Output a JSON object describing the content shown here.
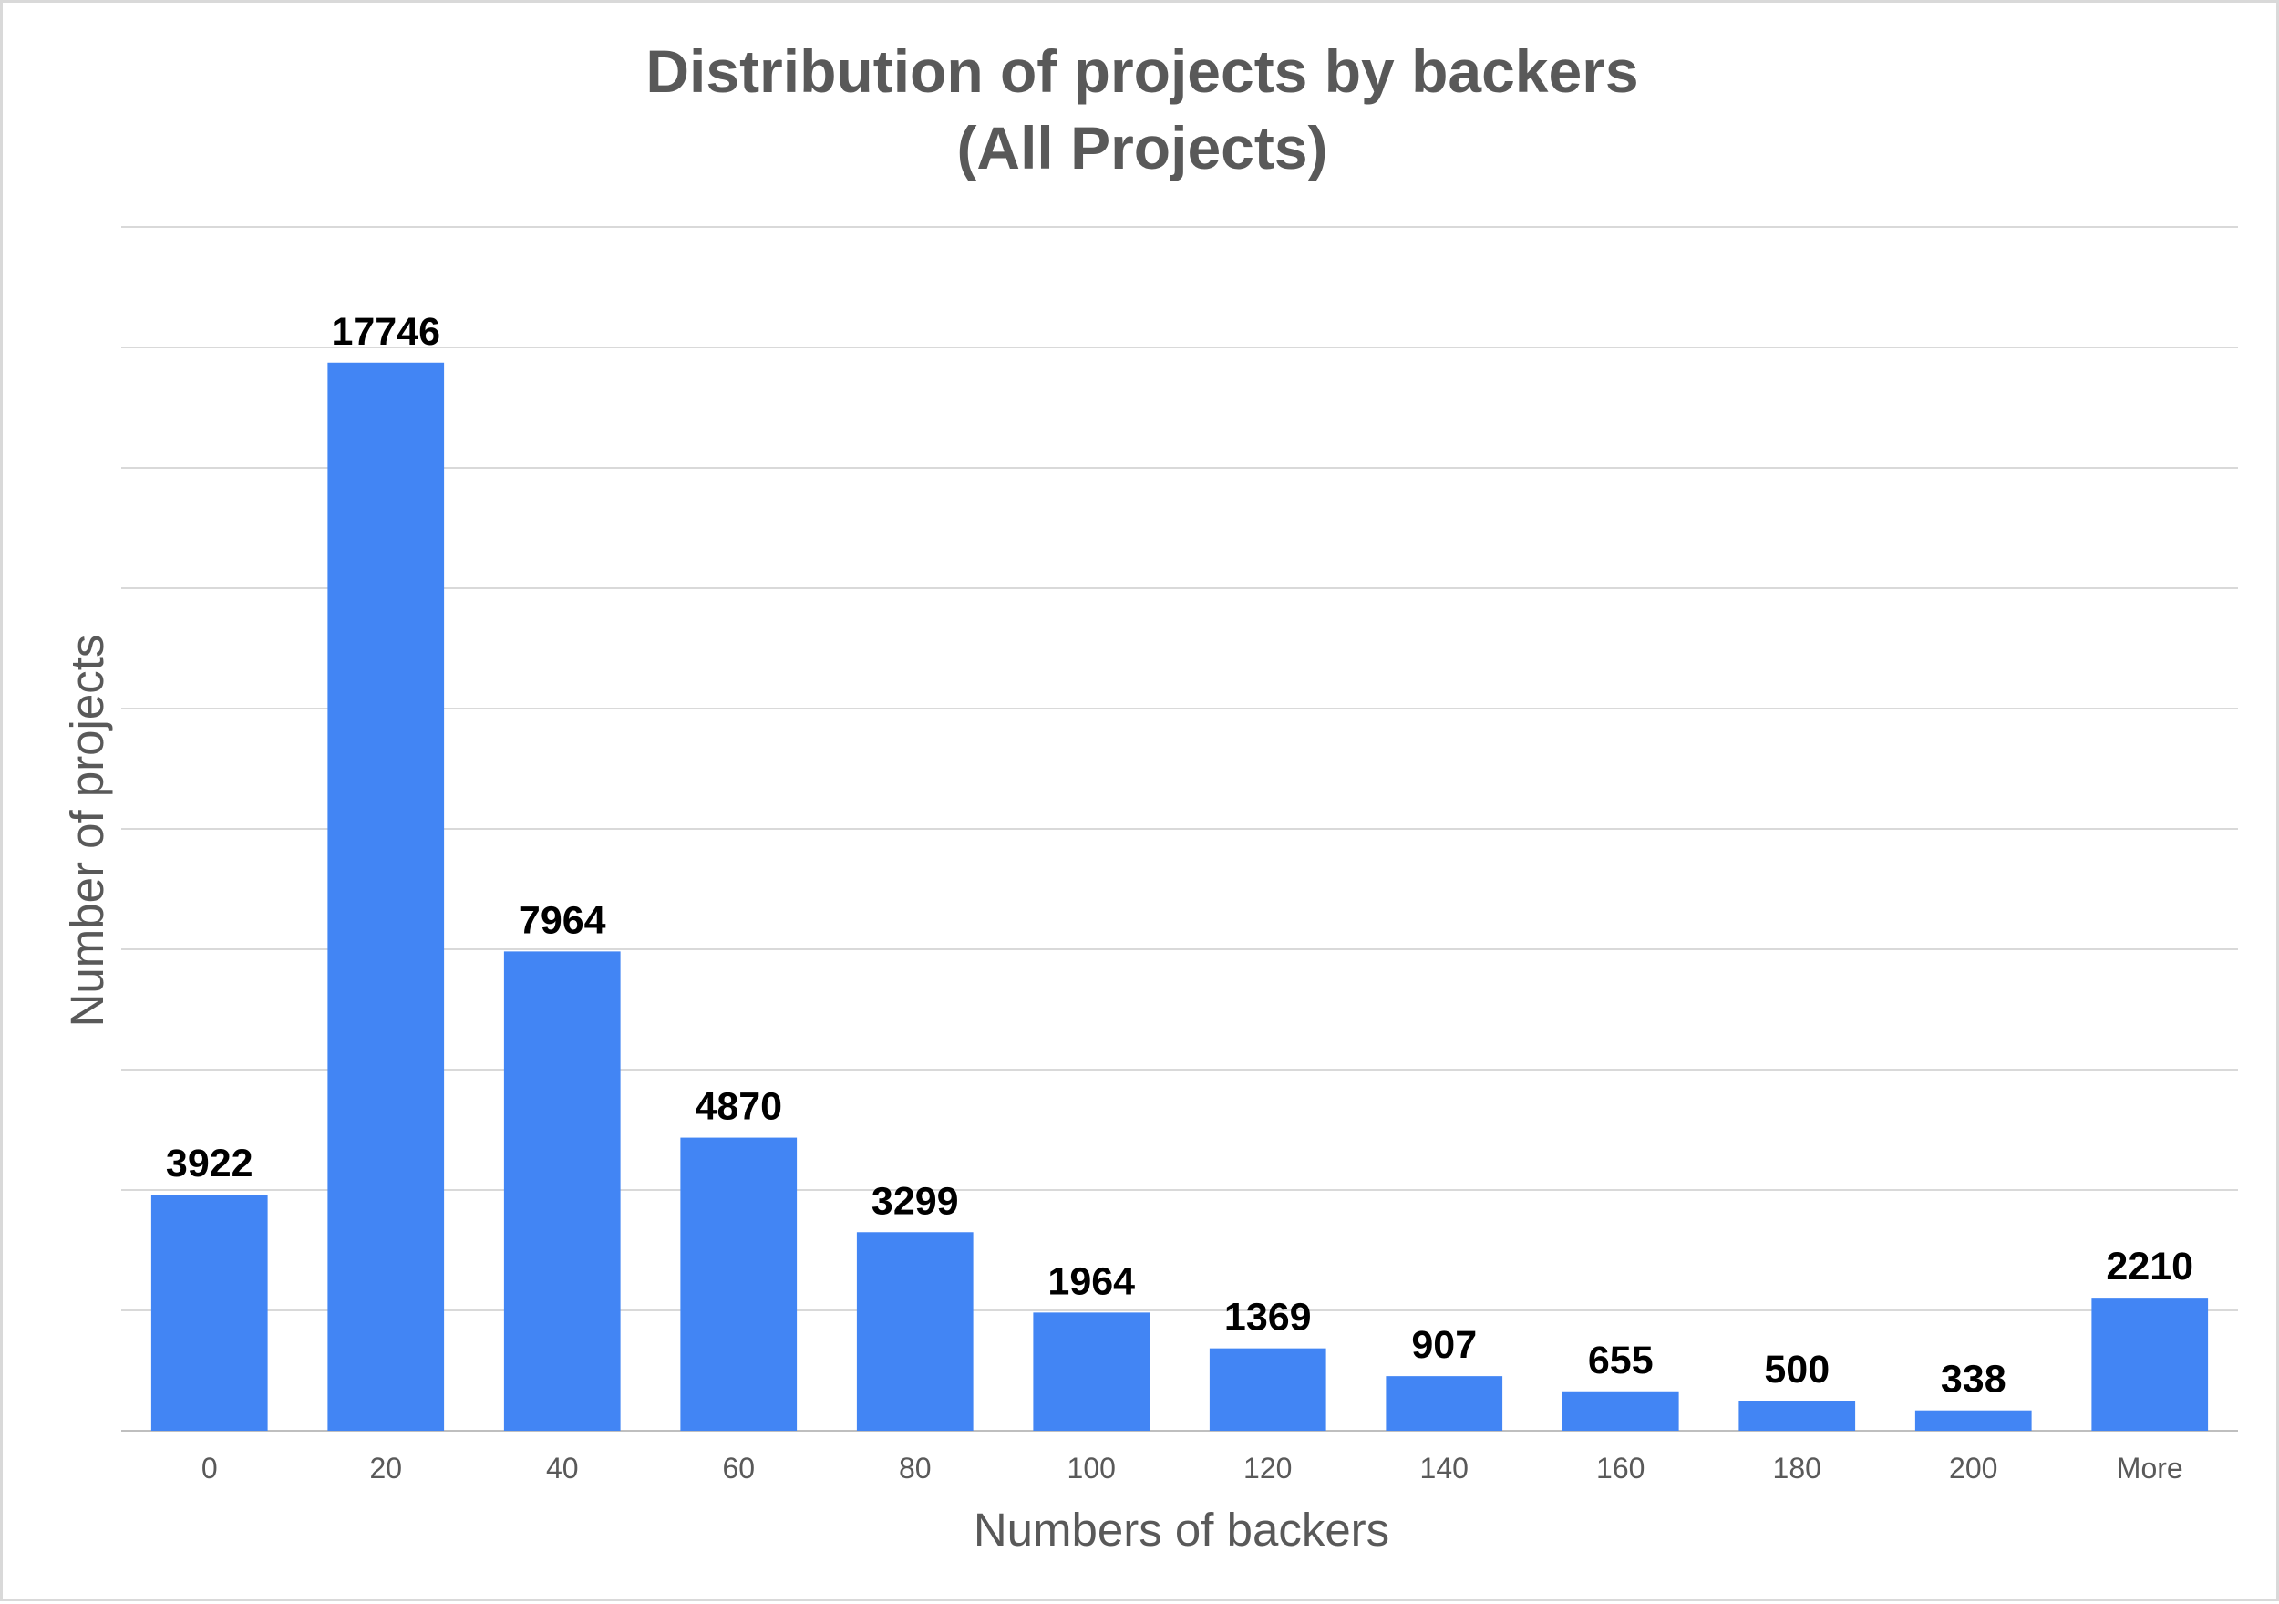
{
  "chart_data": {
    "type": "bar",
    "title": "Distribution of projects by backers",
    "subtitle": "(All Projects)",
    "xlabel": "Numbers of backers",
    "ylabel": "Number of projects",
    "categories": [
      "0",
      "20",
      "40",
      "60",
      "80",
      "100",
      "120",
      "140",
      "160",
      "180",
      "200",
      "More"
    ],
    "values": [
      3922,
      17746,
      7964,
      4870,
      3299,
      1964,
      1369,
      907,
      655,
      500,
      338,
      2210
    ],
    "ylim": [
      0,
      20000
    ],
    "grid": true,
    "legend": "none",
    "bar_color": "#4285f4",
    "data_labels": true
  }
}
